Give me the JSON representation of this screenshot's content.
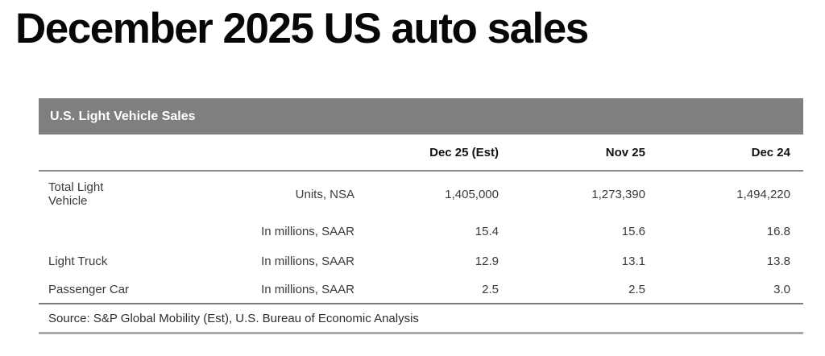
{
  "page": {
    "title": "December 2025 US auto sales"
  },
  "table": {
    "header_bar": {
      "label": "U.S. Light Vehicle Sales",
      "background": "#7f7f7f",
      "text_color": "#ffffff"
    },
    "column_headers": [
      "",
      "",
      "Dec 25 (Est)",
      "Nov 25",
      "Dec 24"
    ],
    "rows": [
      {
        "label": "Total Light Vehicle",
        "measure": "Units, NSA",
        "values": [
          "1,405,000",
          "1,273,390",
          "1,494,220"
        ]
      },
      {
        "label": "",
        "measure": "In millions, SAAR",
        "values": [
          "15.4",
          "15.6",
          "16.8"
        ]
      },
      {
        "label": "Light Truck",
        "measure": "In millions, SAAR",
        "values": [
          "12.9",
          "13.1",
          "13.8"
        ]
      },
      {
        "label": "Passenger Car",
        "measure": "In millions, SAAR",
        "values": [
          "2.5",
          "2.5",
          "3.0"
        ]
      }
    ],
    "source_note": "Source: S&P Global Mobility (Est), U.S. Bureau of Economic Analysis"
  },
  "colors": {
    "title_text": "#070707",
    "body_text": "#3a3a3a",
    "header_bar_gray": "#7f7f7f",
    "rule_header": "#8c8c8c",
    "rule_above_source": "#7d7d7d",
    "rule_bottom": "#a9a9a9"
  }
}
